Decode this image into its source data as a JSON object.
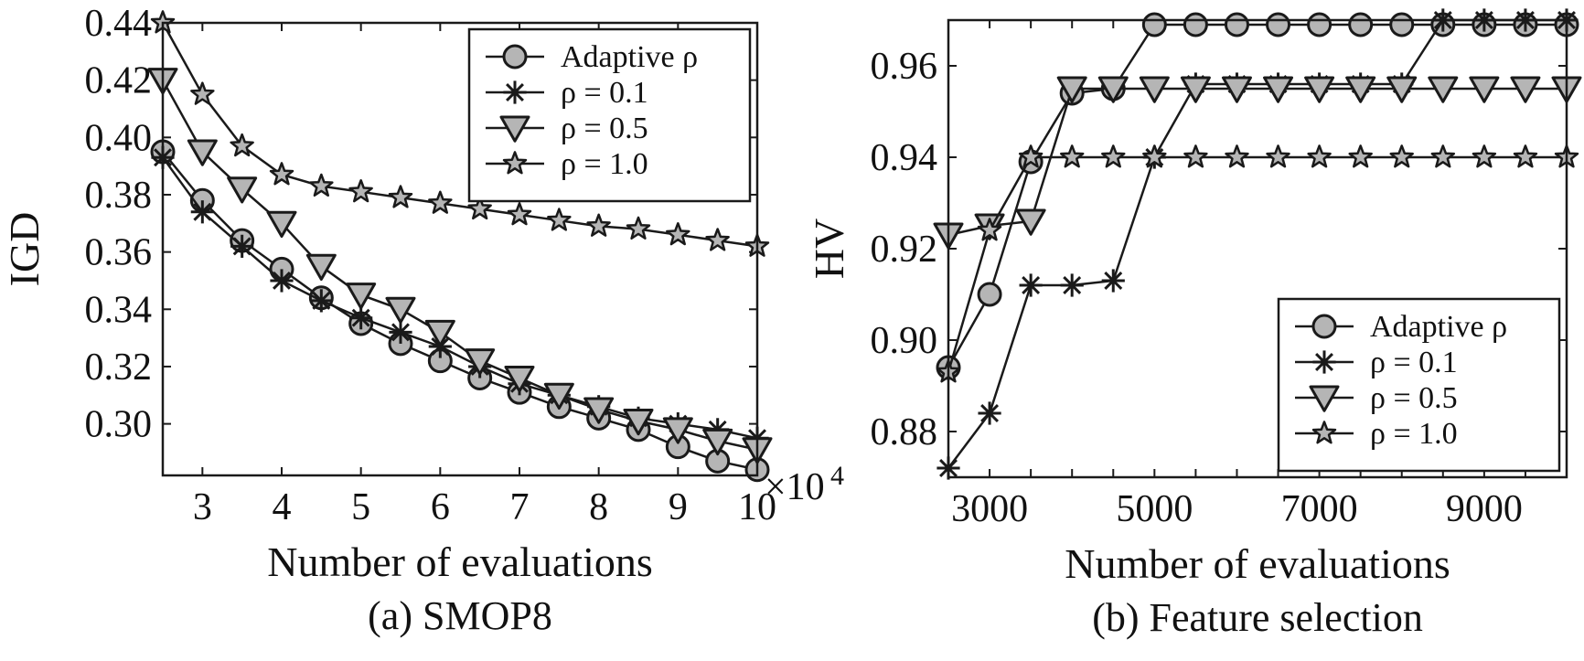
{
  "colors": {
    "marker_fill": "#b5b5b5",
    "stroke": "#1a1a1a",
    "background": "#ffffff"
  },
  "chart_data": [
    {
      "type": "line",
      "caption": "(a) SMOP8",
      "xlabel": "Number of evaluations",
      "ylabel": "IGD",
      "x_multiplier": "×10",
      "x_multiplier_exp": "4",
      "xlim": [
        2.5,
        10
      ],
      "ylim": [
        0.282,
        0.44
      ],
      "xticks": [
        3,
        4,
        5,
        6,
        7,
        8,
        9,
        10
      ],
      "xtick_labels": [
        "3",
        "4",
        "5",
        "6",
        "7",
        "8",
        "9",
        "10"
      ],
      "yticks": [
        0.3,
        0.32,
        0.34,
        0.36,
        0.38,
        0.4,
        0.42,
        0.44
      ],
      "ytick_labels": [
        "0.30",
        "0.32",
        "0.34",
        "0.36",
        "0.38",
        "0.40",
        "0.42",
        "0.44"
      ],
      "x": [
        2.5,
        3,
        3.5,
        4,
        4.5,
        5,
        5.5,
        6,
        6.5,
        7,
        7.5,
        8,
        8.5,
        9,
        9.5,
        10
      ],
      "legend_position": "top-right",
      "series": [
        {
          "name": "Adaptive ρ",
          "marker": "circle",
          "values": [
            0.395,
            0.378,
            0.364,
            0.354,
            0.344,
            0.335,
            0.328,
            0.322,
            0.316,
            0.311,
            0.306,
            0.302,
            0.298,
            0.292,
            0.287,
            0.284
          ]
        },
        {
          "name": "ρ = 0.1",
          "marker": "asterisk",
          "values": [
            0.393,
            0.374,
            0.362,
            0.35,
            0.343,
            0.337,
            0.332,
            0.327,
            0.32,
            0.314,
            0.31,
            0.306,
            0.302,
            0.3,
            0.298,
            0.295
          ]
        },
        {
          "name": "ρ = 0.5",
          "marker": "triangle-down",
          "values": [
            0.42,
            0.395,
            0.382,
            0.37,
            0.355,
            0.345,
            0.34,
            0.332,
            0.322,
            0.316,
            0.31,
            0.305,
            0.301,
            0.298,
            0.294,
            0.291
          ]
        },
        {
          "name": "ρ = 1.0",
          "marker": "star",
          "values": [
            0.44,
            0.415,
            0.397,
            0.387,
            0.383,
            0.381,
            0.379,
            0.377,
            0.375,
            0.373,
            0.371,
            0.369,
            0.368,
            0.366,
            0.364,
            0.362
          ]
        }
      ]
    },
    {
      "type": "line",
      "caption": "(b) Feature selection",
      "xlabel": "Number of evaluations",
      "ylabel": "HV",
      "xlim": [
        2500,
        10000
      ],
      "ylim": [
        0.87,
        0.97
      ],
      "xticks": [
        3000,
        5000,
        7000,
        9000
      ],
      "xtick_labels": [
        "3000",
        "5000",
        "7000",
        "9000"
      ],
      "xminor_ticks": [
        3500,
        4000,
        4500,
        5500,
        6000,
        6500,
        7500,
        8000,
        8500,
        9500
      ],
      "yticks": [
        0.88,
        0.9,
        0.92,
        0.94,
        0.96
      ],
      "ytick_labels": [
        "0.88",
        "0.90",
        "0.92",
        "0.94",
        "0.96"
      ],
      "x": [
        2500,
        3000,
        3500,
        4000,
        4500,
        5000,
        5500,
        6000,
        6500,
        7000,
        7500,
        8000,
        8500,
        9000,
        9500,
        10000
      ],
      "legend_position": "bottom-right",
      "series": [
        {
          "name": "Adaptive ρ",
          "marker": "circle",
          "values": [
            0.894,
            0.91,
            0.939,
            0.954,
            0.955,
            0.969,
            0.969,
            0.969,
            0.969,
            0.969,
            0.969,
            0.969,
            0.969,
            0.969,
            0.969,
            0.969
          ]
        },
        {
          "name": "ρ = 0.1",
          "marker": "asterisk",
          "values": [
            0.872,
            0.884,
            0.912,
            0.912,
            0.913,
            0.94,
            0.956,
            0.956,
            0.956,
            0.956,
            0.956,
            0.956,
            0.97,
            0.97,
            0.97,
            0.97
          ]
        },
        {
          "name": "ρ = 0.5",
          "marker": "triangle-down",
          "values": [
            0.923,
            0.925,
            0.926,
            0.955,
            0.955,
            0.955,
            0.955,
            0.955,
            0.955,
            0.955,
            0.955,
            0.955,
            0.955,
            0.955,
            0.955,
            0.955
          ]
        },
        {
          "name": "ρ = 1.0",
          "marker": "star",
          "values": [
            0.893,
            0.924,
            0.94,
            0.94,
            0.94,
            0.94,
            0.94,
            0.94,
            0.94,
            0.94,
            0.94,
            0.94,
            0.94,
            0.94,
            0.94,
            0.94
          ]
        }
      ]
    }
  ]
}
